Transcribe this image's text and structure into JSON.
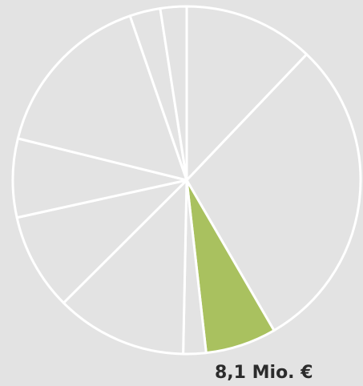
{
  "chart_data": {
    "type": "pie",
    "values": [
      14.9,
      36.3,
      8.1,
      2.6,
      15.0,
      11.1,
      9.0,
      19.5,
      3.5,
      3.0
    ],
    "value_labels": [
      null,
      null,
      "8,1 Mio. €",
      null,
      null,
      null,
      null,
      null,
      null,
      null
    ],
    "colors": [
      "#e3e3e3",
      "#e3e3e3",
      "#a9c15f",
      "#e3e3e3",
      "#e3e3e3",
      "#e3e3e3",
      "#e3e3e3",
      "#e3e3e3",
      "#e3e3e3",
      "#e3e3e3"
    ]
  }
}
